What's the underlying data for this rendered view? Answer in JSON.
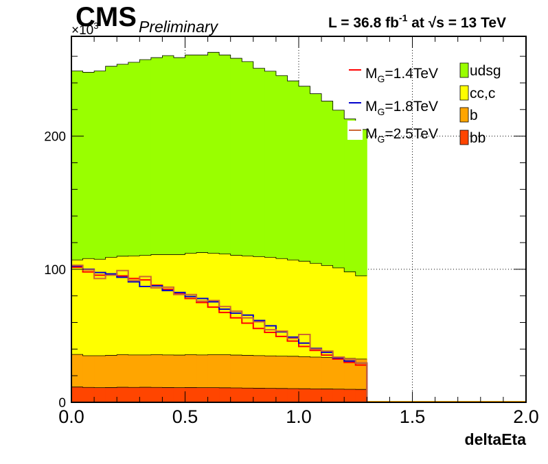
{
  "header": {
    "cms": "CMS",
    "preliminary": "Preliminary",
    "lumi_prefix": "L = 36.8 fb",
    "lumi_exp": "-1",
    "lumi_mid": " at  ",
    "sqrt_s": "√s",
    "lumi_suffix": " = 13 TeV"
  },
  "chart_data": {
    "type": "bar",
    "subtype": "stacked-histogram-with-overlaid-step-lines",
    "xlabel": "deltaEta",
    "ylabel": "",
    "y_multiplier_label": "×10",
    "y_multiplier_exp": "3",
    "xlim": [
      0.0,
      2.0
    ],
    "ylim": [
      0,
      275000
    ],
    "x_ticks": [
      "0.0",
      "0.5",
      "1.0",
      "1.5",
      "2.0"
    ],
    "y_ticks": [
      "0",
      "100",
      "200"
    ],
    "grid": true,
    "legend_position": "top-right",
    "bin_edges": [
      0.0,
      0.05,
      0.1,
      0.15,
      0.2,
      0.25,
      0.3,
      0.35,
      0.4,
      0.45,
      0.5,
      0.55,
      0.6,
      0.65,
      0.7,
      0.75,
      0.8,
      0.85,
      0.9,
      0.95,
      1.0,
      1.05,
      1.1,
      1.15,
      1.2,
      1.25,
      1.3,
      1.35,
      1.4,
      1.45,
      1.5,
      1.55,
      1.6,
      1.65,
      1.7,
      1.75,
      1.8,
      1.85,
      1.9,
      1.95,
      2.0
    ],
    "stack": [
      {
        "name": "bb",
        "color": "#ff4500",
        "values": [
          11500,
          11200,
          11000,
          11100,
          11300,
          11200,
          11300,
          11200,
          11100,
          11000,
          11100,
          11000,
          11000,
          10900,
          10800,
          10700,
          10600,
          10500,
          10400,
          10300,
          10200,
          10100,
          10000,
          9900,
          9800,
          9700,
          0,
          0,
          0,
          0,
          0,
          0,
          0,
          0,
          0,
          0,
          0,
          0,
          0,
          0
        ]
      },
      {
        "name": "b",
        "color": "#ffa500",
        "values": [
          24500,
          23800,
          24000,
          24200,
          24500,
          24400,
          24300,
          24600,
          24500,
          24500,
          24700,
          24600,
          24800,
          24900,
          24700,
          24600,
          24500,
          24400,
          24300,
          24300,
          24100,
          23900,
          23800,
          23600,
          23200,
          22800,
          0,
          0,
          0,
          0,
          0,
          0,
          0,
          0,
          0,
          0,
          0,
          0,
          0,
          0
        ]
      },
      {
        "name": "cc,c",
        "color": "#ffff00",
        "values": [
          71000,
          73000,
          72500,
          73700,
          74000,
          74400,
          74800,
          75200,
          75400,
          75500,
          76200,
          76900,
          76200,
          75700,
          75000,
          74700,
          74400,
          74100,
          73300,
          72400,
          71700,
          70400,
          69000,
          67500,
          65000,
          62500,
          0,
          0,
          0,
          0,
          0,
          0,
          0,
          0,
          0,
          0,
          0,
          0,
          0,
          0
        ]
      },
      {
        "name": "udsg",
        "color": "#99ff00",
        "values": [
          142000,
          140000,
          141500,
          143500,
          144200,
          145500,
          147100,
          148000,
          149500,
          148000,
          149000,
          148500,
          151000,
          149500,
          148000,
          146000,
          141500,
          139800,
          137500,
          134500,
          131500,
          127500,
          123500,
          118500,
          115000,
          110000,
          0,
          0,
          0,
          0,
          0,
          0,
          0,
          0,
          0,
          0,
          0,
          0,
          0,
          0
        ]
      }
    ],
    "lines": [
      {
        "name": "M_G=1.4TeV",
        "color": "#ff0000",
        "values": [
          101500,
          98000,
          95500,
          96000,
          95000,
          93000,
          92000,
          88000,
          85000,
          82000,
          78000,
          75000,
          71500,
          67500,
          63500,
          59500,
          55500,
          52500,
          49500,
          46000,
          42000,
          39000,
          35500,
          32500,
          30000,
          28000,
          0,
          0,
          0,
          0,
          0,
          0,
          0,
          0,
          0,
          0,
          0,
          0,
          0,
          0
        ]
      },
      {
        "name": "M_G=1.8TeV",
        "color": "#0000cc",
        "values": [
          102500,
          100000,
          97500,
          96500,
          94000,
          90500,
          87000,
          87500,
          84000,
          82500,
          79500,
          78000,
          75500,
          70000,
          67000,
          65500,
          61500,
          57500,
          53000,
          49000,
          44500,
          40500,
          37500,
          33500,
          31000,
          29500,
          0,
          0,
          0,
          0,
          0,
          0,
          0,
          0,
          0,
          0,
          0,
          0,
          0,
          0
        ]
      },
      {
        "name": "M_G=2.5TeV",
        "color": "#cc6633",
        "values": [
          103000,
          99500,
          93000,
          95500,
          99000,
          91500,
          94500,
          86000,
          86500,
          81000,
          81000,
          76000,
          76500,
          72000,
          68500,
          63500,
          60500,
          54500,
          53500,
          48000,
          51000,
          40000,
          38500,
          34000,
          32500,
          29500,
          0,
          0,
          0,
          0,
          0,
          0,
          0,
          0,
          0,
          0,
          0,
          0,
          0,
          0
        ]
      }
    ],
    "legend_lines": [
      {
        "main": "M",
        "sub": "G",
        "rest": "=1.4TeV",
        "color": "#ff0000"
      },
      {
        "main": "M",
        "sub": "G",
        "rest": "=1.8TeV",
        "color": "#0000cc"
      },
      {
        "main": "M",
        "sub": "G",
        "rest": "=2.5TeV",
        "color": "#cc6633"
      }
    ],
    "legend_fills": [
      {
        "label": "udsg",
        "color": "#99ff00"
      },
      {
        "label": "cc,c",
        "color": "#ffff00"
      },
      {
        "label": "b",
        "color": "#ffa500"
      },
      {
        "label": "bb",
        "color": "#ff4500"
      }
    ]
  }
}
